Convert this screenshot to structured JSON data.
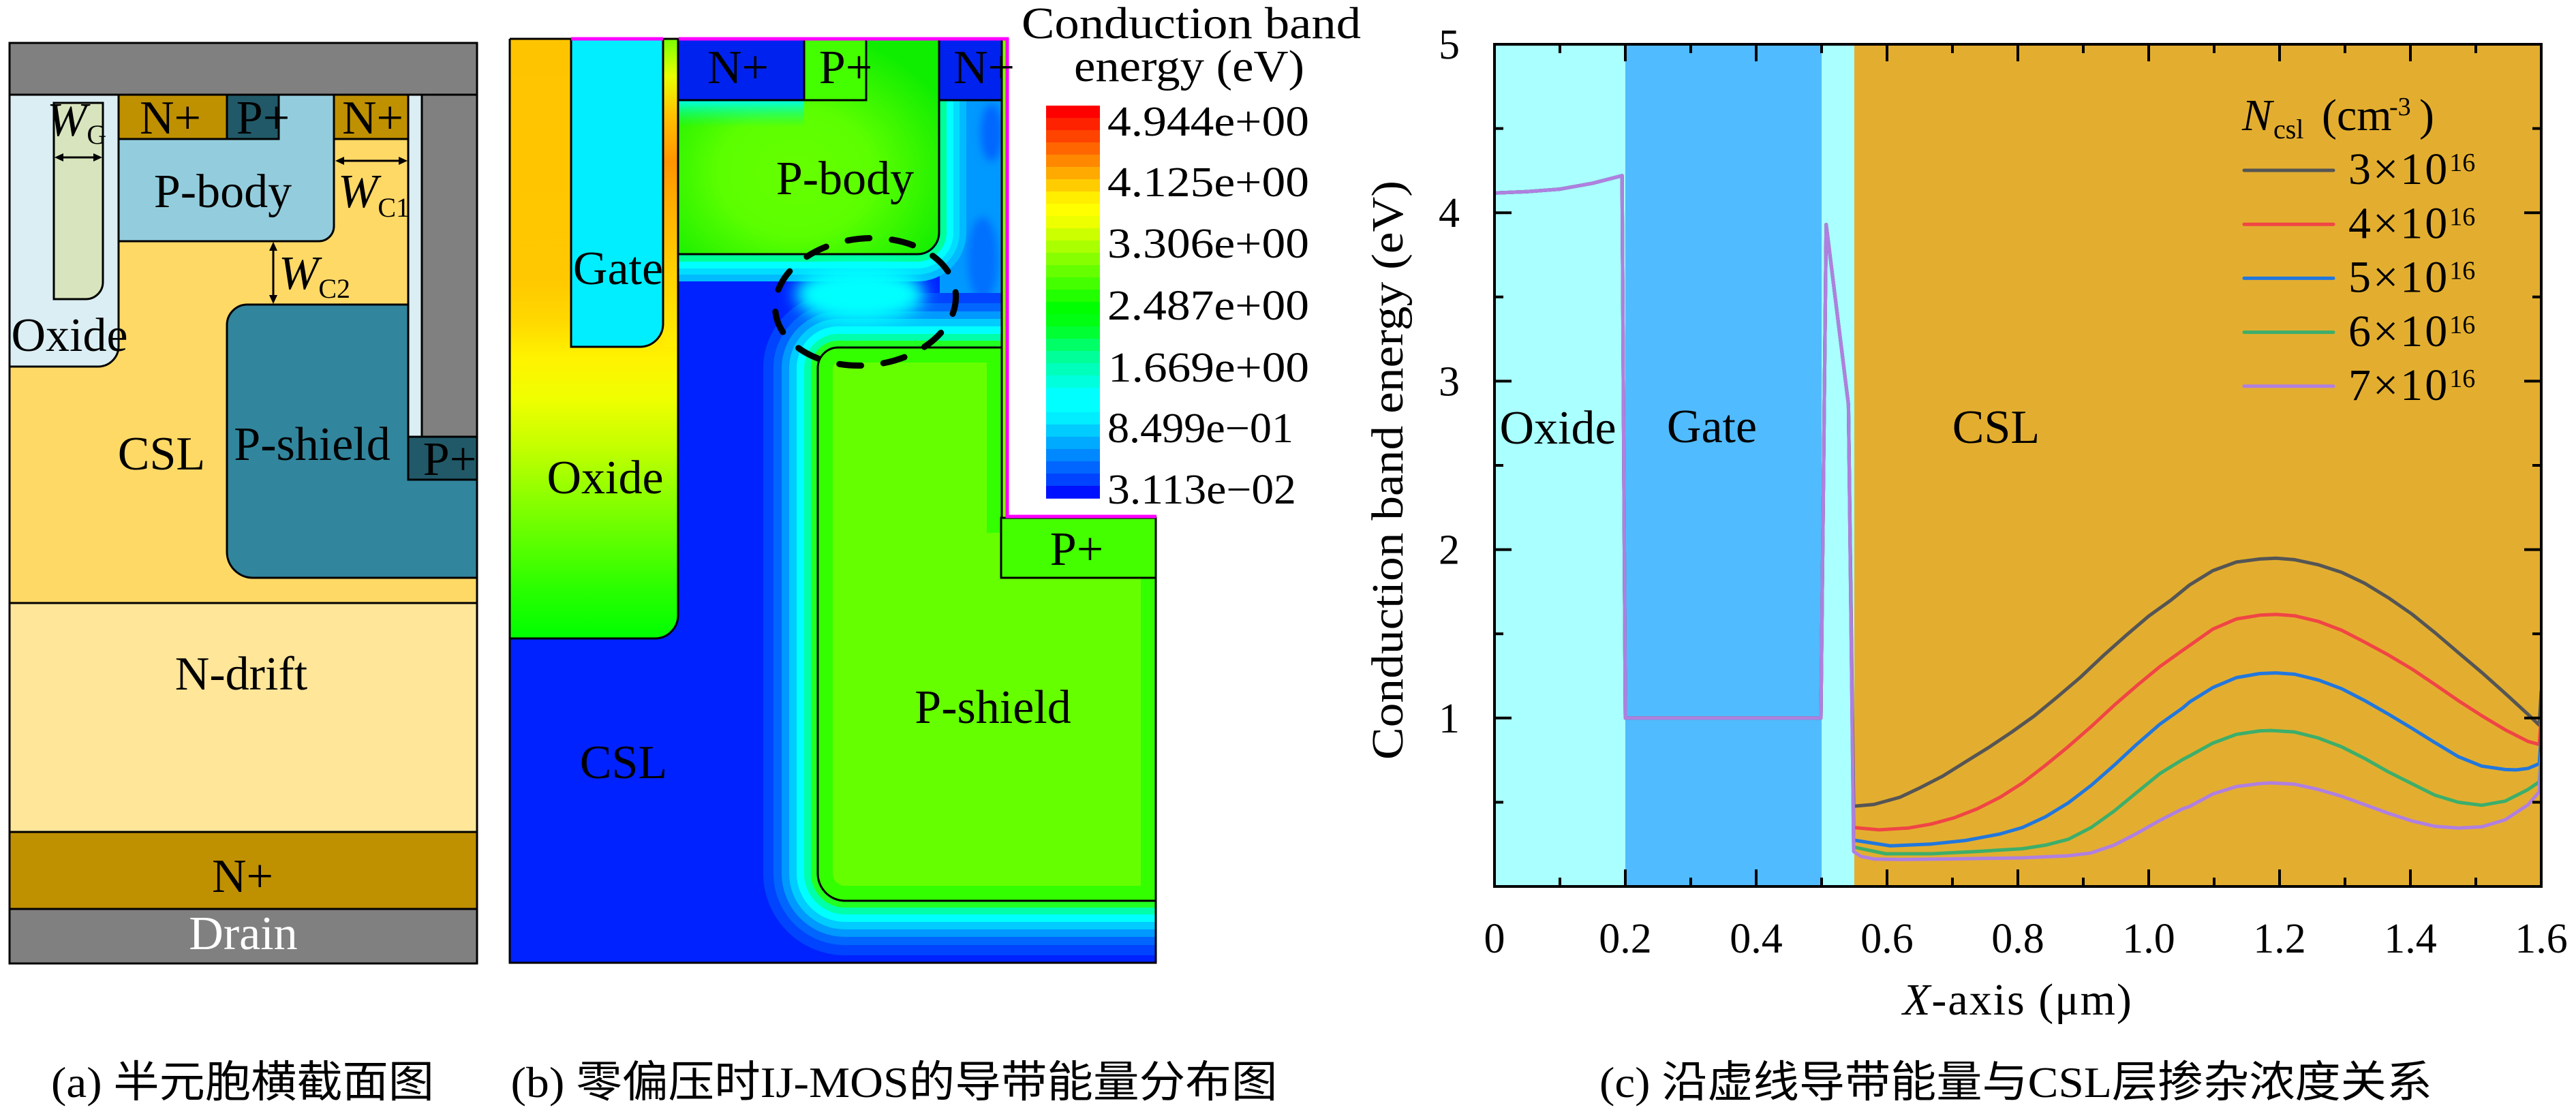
{
  "figure": {
    "panel_a": {
      "caption": "(a) 半元胞横截面图",
      "regions": {
        "n_plus_left": "N+",
        "p_plus_top": "P+",
        "n_plus_right": "N+",
        "p_body": "P-body",
        "oxide": "Oxide",
        "csl": "CSL",
        "p_shield": "P-shield",
        "p_plus_right": "P+",
        "n_drift": "N-drift",
        "n_plus_substrate": "N+",
        "drain": "Drain"
      },
      "dimensions": {
        "gate_width": {
          "symbol": "W",
          "subscript": "G"
        },
        "channel_width_1": {
          "symbol": "W",
          "subscript": "C1"
        },
        "channel_width_2": {
          "symbol": "W",
          "subscript": "C2"
        }
      },
      "colors": {
        "metal": "#808080",
        "oxide": "#DAEEF3",
        "gate": "#D7E4BD",
        "n_plus": "#BF9000",
        "p_plus": "#215968",
        "p_body": "#93CDDD",
        "csl": "#FFD966",
        "p_shield": "#31859C",
        "n_drift": "#FFE699"
      }
    },
    "panel_b": {
      "caption": "(b) 零偏压时IJ-MOS的导带能量分布图",
      "regions": {
        "n_plus_left": "N+",
        "p_plus_top": "P+",
        "n_plus_right": "N+",
        "p_body": "P-body",
        "gate": "Gate",
        "oxide": "Oxide",
        "csl": "CSL",
        "p_shield": "P-shield",
        "p_plus_right": "P+"
      },
      "highlight_color": "#FF00FF",
      "colorbar": {
        "title_line1": "Conduction band",
        "title_line2": "energy (eV)",
        "tick_labels": [
          "4.944e+00",
          "4.125e+00",
          "3.306e+00",
          "2.487e+00",
          "1.669e+00",
          "8.499e−01",
          "3.113e−02"
        ],
        "range_ev": [
          0.03113,
          4.944
        ],
        "colors": [
          "#FF0000",
          "#FF2200",
          "#FF4400",
          "#FF6600",
          "#FF8800",
          "#FFAA00",
          "#FFCC00",
          "#FFEE00",
          "#FFFF00",
          "#EEFF00",
          "#CCFF00",
          "#AAFF00",
          "#88FF00",
          "#66FF00",
          "#44FF00",
          "#22FF00",
          "#00FF00",
          "#00FF11",
          "#00FF33",
          "#00FF66",
          "#00FF99",
          "#00FFBB",
          "#00FFDD",
          "#00FFFF",
          "#00FFFF",
          "#00EEFF",
          "#00CCFF",
          "#00AAFF",
          "#0088FF",
          "#0066FF",
          "#0044FF",
          "#0011FF"
        ]
      }
    },
    "panel_c": {
      "caption": "(c) 沿虚线导带能量与CSL层掺杂浓度关系"
    }
  },
  "chart_data": {
    "type": "line",
    "title": "",
    "xlabel": "X-axis (μm)",
    "ylabel": "Conduction band energy (eV)",
    "xlim": [
      0,
      1.6
    ],
    "ylim": [
      0,
      5
    ],
    "grid": false,
    "x_ticks": {
      "values": [
        0,
        0.2,
        0.4,
        0.6,
        0.8,
        1.0,
        1.2,
        1.4,
        1.6
      ],
      "labels": [
        "0",
        "0.2",
        "0.4",
        "0.6",
        "0.8",
        "1.0",
        "1.2",
        "1.4",
        "1.6"
      ],
      "minor_step": 0.1
    },
    "y_ticks": {
      "values": [
        1,
        2,
        3,
        4,
        5
      ],
      "labels": [
        "1",
        "2",
        "3",
        "4",
        "5"
      ],
      "minor_step": 0.5
    },
    "regions": [
      {
        "x": [
          0,
          0.2
        ],
        "color": "#AAFFFF",
        "label": "Oxide"
      },
      {
        "x": [
          0.2,
          0.5
        ],
        "color": "#50BBFF",
        "label": "Gate"
      },
      {
        "x": [
          0.5,
          0.55
        ],
        "color": "#AAFFFF"
      },
      {
        "x": [
          0.55,
          1.6
        ],
        "color": "#E3AE2F",
        "label": "CSL"
      }
    ],
    "legend": {
      "position": "top-right",
      "title": {
        "symbol": "N",
        "subscript": "csl",
        "unit": "(cm",
        "unit_exponent": "-3",
        "unit_close": ")"
      }
    },
    "series": [
      {
        "label_base": "3×10",
        "label_exponent": "16",
        "color": "#555555",
        "x": [
          0,
          0.05,
          0.1,
          0.15,
          0.195,
          0.2,
          0.499,
          0.507,
          0.541,
          0.549,
          0.58,
          0.62,
          0.65,
          0.685,
          0.72,
          0.755,
          0.79,
          0.825,
          0.86,
          0.895,
          0.93,
          0.964,
          1.0,
          1.034,
          1.0625,
          1.098,
          1.134,
          1.17,
          1.195,
          1.223,
          1.259,
          1.295,
          1.33,
          1.366,
          1.402,
          1.4375,
          1.473,
          1.509,
          1.545,
          1.58,
          1.597,
          1.6
        ],
        "y": [
          4.117,
          4.125,
          4.14,
          4.175,
          4.22,
          1.0,
          1.0,
          3.93,
          2.86,
          0.476,
          0.487,
          0.53,
          0.585,
          0.655,
          0.74,
          0.824,
          0.915,
          1.012,
          1.124,
          1.24,
          1.368,
          1.486,
          1.605,
          1.7,
          1.79,
          1.875,
          1.926,
          1.944,
          1.949,
          1.94,
          1.91,
          1.865,
          1.8,
          1.715,
          1.618,
          1.507,
          1.389,
          1.271,
          1.146,
          1.021,
          0.958,
          1.16
        ]
      },
      {
        "label_base": "4×10",
        "label_exponent": "16",
        "color": "#F04545",
        "x": [
          0,
          0.05,
          0.1,
          0.15,
          0.195,
          0.2,
          0.499,
          0.507,
          0.541,
          0.549,
          0.588,
          0.633,
          0.668,
          0.703,
          0.738,
          0.773,
          0.807,
          0.842,
          0.877,
          0.912,
          0.947,
          0.982,
          1.017,
          1.052,
          1.0625,
          1.098,
          1.134,
          1.17,
          1.195,
          1.223,
          1.259,
          1.295,
          1.33,
          1.366,
          1.402,
          1.4375,
          1.473,
          1.509,
          1.545,
          1.58,
          1.597,
          1.6
        ],
        "y": [
          4.117,
          4.125,
          4.14,
          4.175,
          4.22,
          1.0,
          1.0,
          3.93,
          2.86,
          0.35,
          0.336,
          0.347,
          0.371,
          0.408,
          0.461,
          0.53,
          0.614,
          0.719,
          0.83,
          0.949,
          1.075,
          1.193,
          1.305,
          1.402,
          1.431,
          1.528,
          1.588,
          1.611,
          1.615,
          1.607,
          1.574,
          1.521,
          1.451,
          1.375,
          1.292,
          1.199,
          1.104,
          1.014,
          0.93,
          0.861,
          0.843,
          1.007
        ]
      },
      {
        "label_base": "5×10",
        "label_exponent": "16",
        "color": "#2277DD",
        "x": [
          0,
          0.05,
          0.1,
          0.15,
          0.195,
          0.2,
          0.499,
          0.507,
          0.541,
          0.549,
          0.605,
          0.668,
          0.72,
          0.773,
          0.807,
          0.842,
          0.877,
          0.912,
          0.947,
          0.982,
          1.017,
          1.052,
          1.0625,
          1.098,
          1.134,
          1.17,
          1.195,
          1.223,
          1.259,
          1.295,
          1.33,
          1.366,
          1.402,
          1.4375,
          1.473,
          1.509,
          1.545,
          1.562,
          1.58,
          1.597,
          1.6
        ],
        "y": [
          4.117,
          4.125,
          4.14,
          4.175,
          4.22,
          1.0,
          1.0,
          3.93,
          2.86,
          0.275,
          0.241,
          0.252,
          0.273,
          0.312,
          0.35,
          0.413,
          0.496,
          0.6,
          0.719,
          0.845,
          0.963,
          1.06,
          1.095,
          1.181,
          1.24,
          1.264,
          1.268,
          1.26,
          1.226,
          1.174,
          1.104,
          1.024,
          0.94,
          0.854,
          0.771,
          0.715,
          0.694,
          0.692,
          0.701,
          0.729,
          0.903
        ]
      },
      {
        "label_base": "6×10",
        "label_exponent": "16",
        "color": "#3DAE6B",
        "x": [
          0,
          0.05,
          0.1,
          0.15,
          0.195,
          0.2,
          0.499,
          0.507,
          0.541,
          0.549,
          0.598,
          0.668,
          0.738,
          0.807,
          0.842,
          0.877,
          0.912,
          0.947,
          0.982,
          1.017,
          1.052,
          1.0625,
          1.098,
          1.134,
          1.17,
          1.1875,
          1.223,
          1.259,
          1.295,
          1.33,
          1.366,
          1.402,
          1.4375,
          1.473,
          1.509,
          1.545,
          1.58,
          1.597,
          1.6
        ],
        "y": [
          4.117,
          4.125,
          4.14,
          4.175,
          4.22,
          1.0,
          1.0,
          3.93,
          2.86,
          0.234,
          0.194,
          0.194,
          0.208,
          0.224,
          0.245,
          0.28,
          0.35,
          0.447,
          0.559,
          0.67,
          0.754,
          0.775,
          0.851,
          0.903,
          0.924,
          0.926,
          0.917,
          0.882,
          0.829,
          0.76,
          0.681,
          0.611,
          0.542,
          0.5,
          0.482,
          0.507,
          0.576,
          0.621,
          0.785
        ]
      },
      {
        "label_base": "7×10",
        "label_exponent": "16",
        "color": "#B07FE0",
        "x": [
          0,
          0.05,
          0.1,
          0.15,
          0.195,
          0.2,
          0.499,
          0.507,
          0.541,
          0.549,
          0.56,
          0.58,
          0.62,
          0.703,
          0.807,
          0.877,
          0.912,
          0.947,
          0.982,
          1.017,
          1.052,
          1.0625,
          1.098,
          1.134,
          1.17,
          1.1875,
          1.223,
          1.259,
          1.295,
          1.33,
          1.366,
          1.402,
          1.4375,
          1.473,
          1.509,
          1.545,
          1.58,
          1.597,
          1.6
        ],
        "y": [
          4.117,
          4.125,
          4.14,
          4.175,
          4.22,
          1.0,
          1.0,
          3.93,
          2.86,
          0.207,
          0.179,
          0.163,
          0.16,
          0.164,
          0.17,
          0.182,
          0.199,
          0.245,
          0.315,
          0.392,
          0.461,
          0.475,
          0.549,
          0.593,
          0.611,
          0.615,
          0.607,
          0.576,
          0.535,
          0.486,
          0.435,
          0.389,
          0.357,
          0.347,
          0.354,
          0.396,
          0.486,
          0.5625,
          0.792
        ]
      }
    ]
  }
}
